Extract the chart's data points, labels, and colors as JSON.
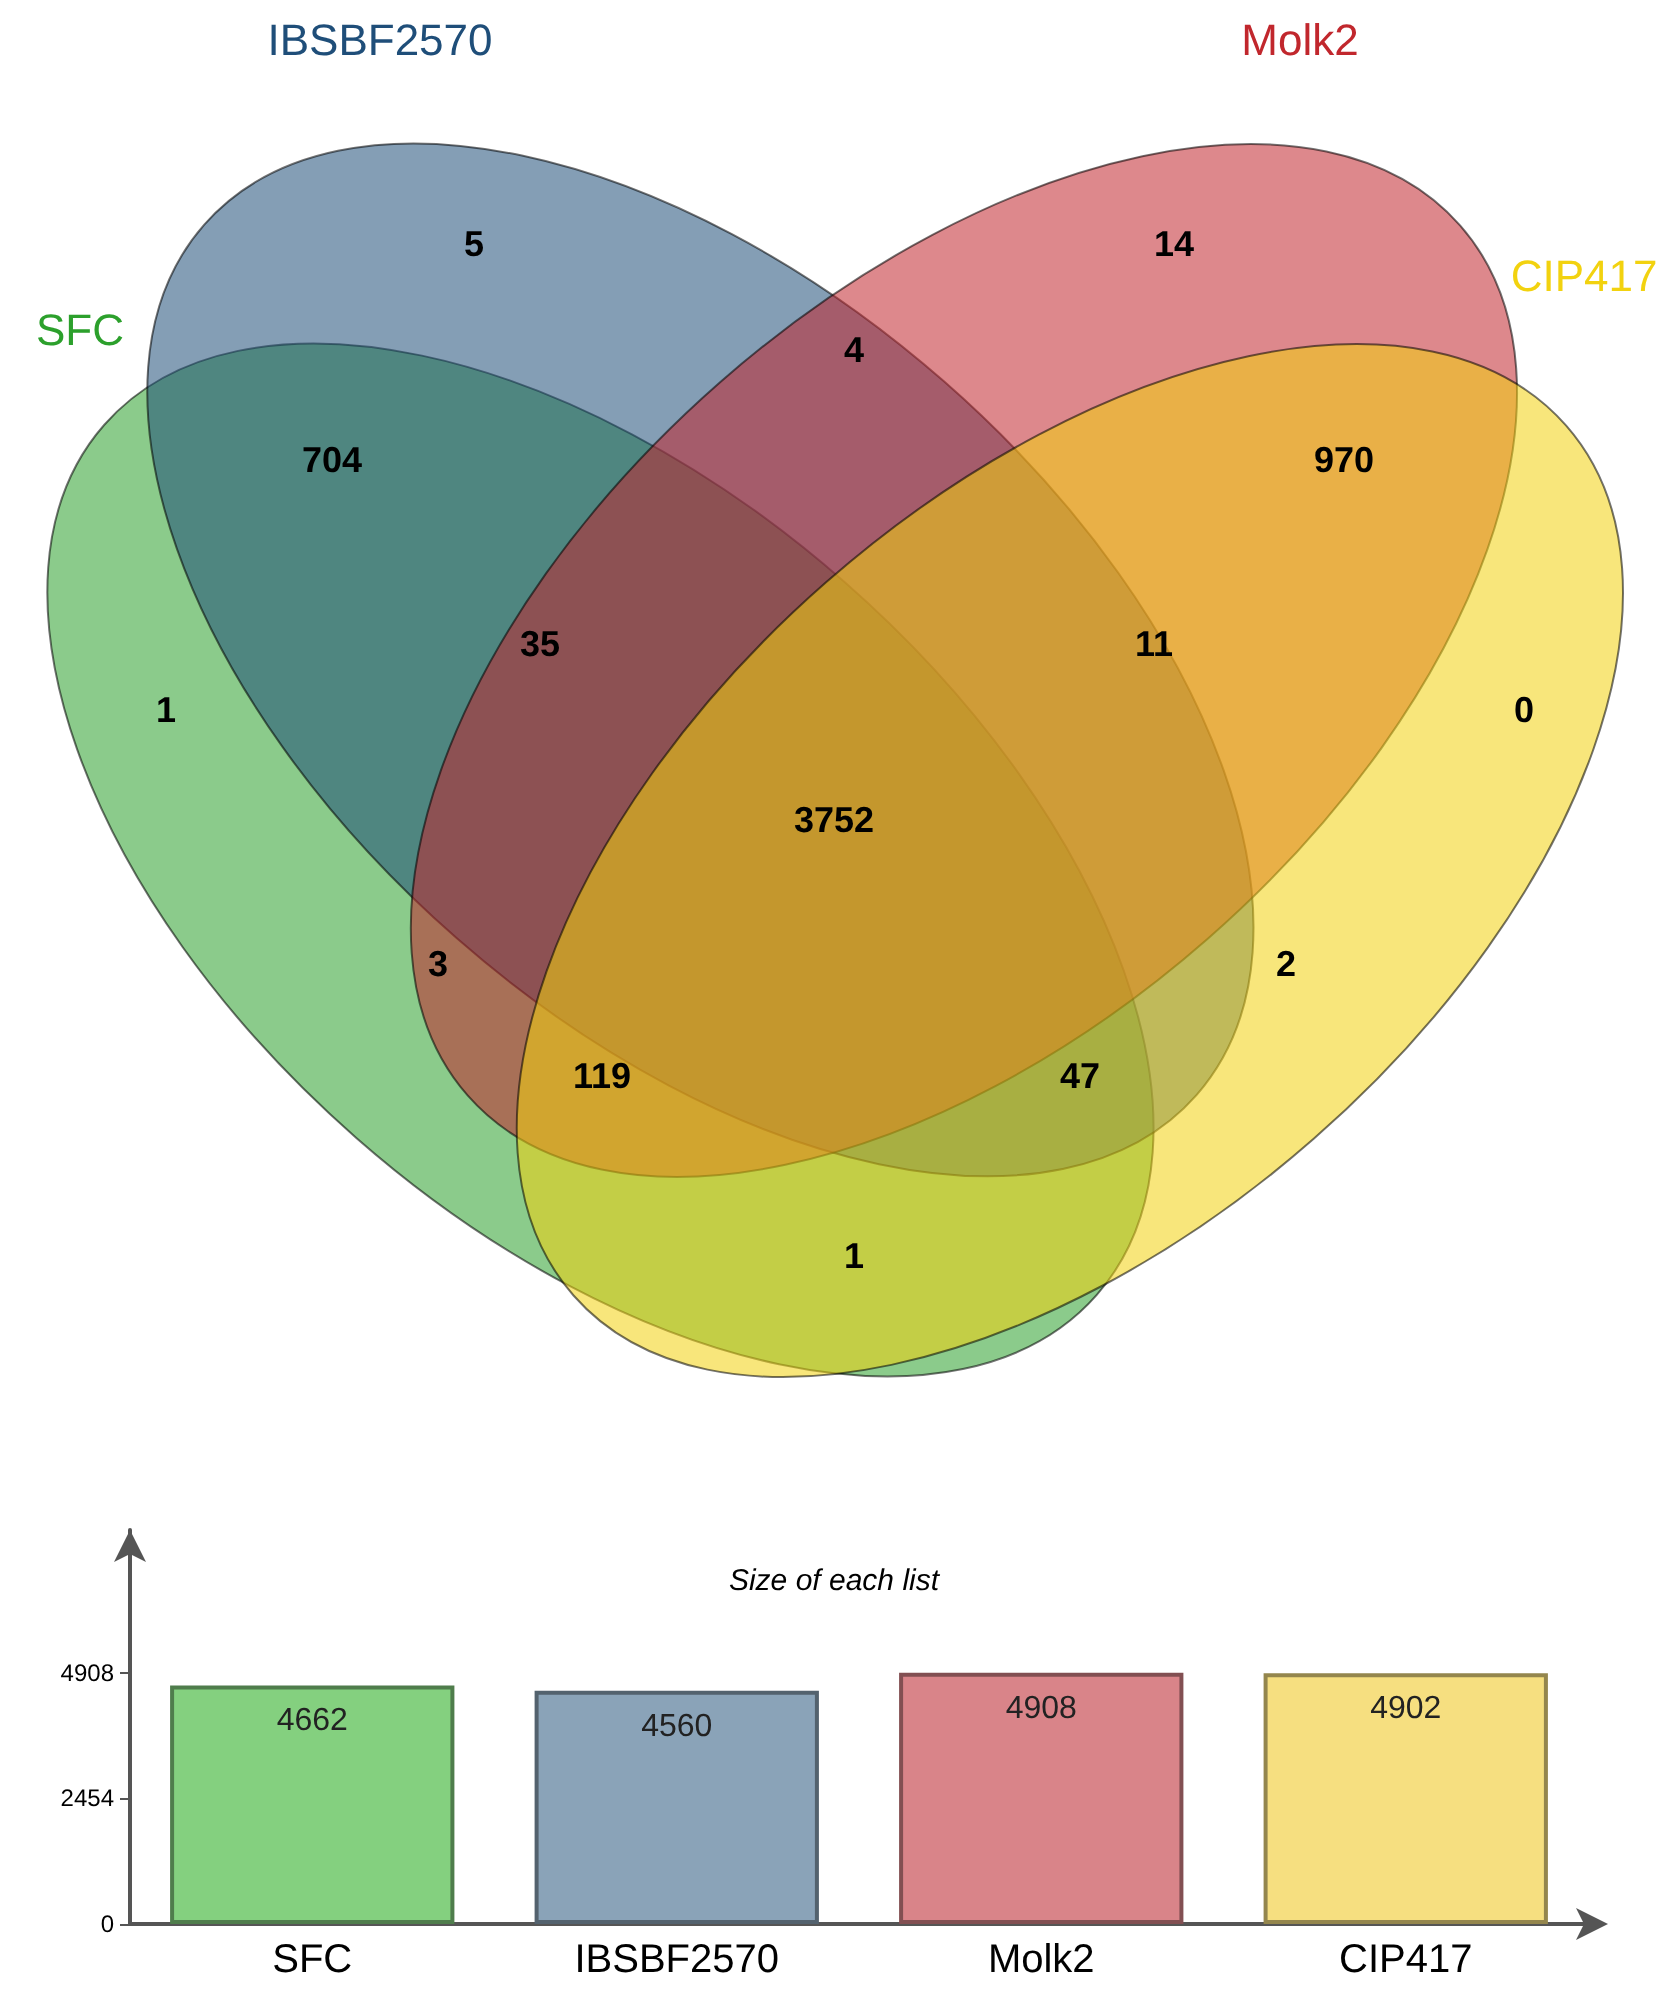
{
  "chart_data": [
    {
      "type": "other",
      "series": [
        {
          "name": "SFC",
          "color": "#2ca02c"
        },
        {
          "name": "IBSBF2570",
          "color": "#1f4e79"
        },
        {
          "name": "Molk2",
          "color": "#c1272d"
        },
        {
          "name": "CIP417",
          "color": "#f2d20f"
        }
      ],
      "annotations": [
        "1",
        "5",
        "14",
        "0",
        "704",
        "4",
        "970",
        "35",
        "11",
        "3752",
        "3",
        "2",
        "119",
        "47",
        "1"
      ]
    },
    {
      "type": "bar",
      "title": "Size of each list",
      "categories": [
        "SFC",
        "IBSBF2570",
        "Molk2",
        "CIP417"
      ],
      "values": [
        4662,
        4560,
        4908,
        4902
      ],
      "colors": [
        "#84d07f",
        "#8aa3b8",
        "#d98489",
        "#f6df80"
      ],
      "ylim": [
        0,
        7700
      ],
      "yticks": [
        0,
        2454,
        4908
      ],
      "data_labels": true,
      "grid": false
    }
  ]
}
